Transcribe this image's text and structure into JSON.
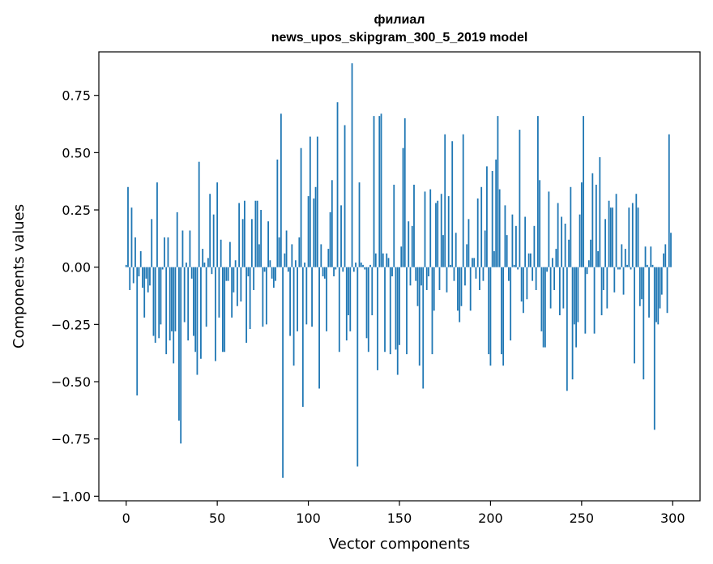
{
  "chart_data": {
    "type": "bar",
    "title": "филиал",
    "subtitle": "news_upos_skipgram_300_5_2019 model",
    "xlabel": "Vector components",
    "ylabel": "Components values",
    "xlim": [
      -15,
      315
    ],
    "ylim": [
      -1.02,
      0.94
    ],
    "x_ticks": [
      0,
      50,
      100,
      150,
      200,
      250,
      300
    ],
    "y_ticks": [
      -1.0,
      -0.75,
      -0.5,
      -0.25,
      0.0,
      0.25,
      0.5,
      0.75
    ],
    "y_tick_labels": [
      "−1.00",
      "−0.75",
      "−0.50",
      "−0.25",
      "0.00",
      "0.25",
      "0.50",
      "0.75"
    ],
    "bar_color": "#1f77b4",
    "grid": false,
    "x": [
      0,
      1,
      2,
      3,
      4,
      5,
      6,
      7,
      8,
      9,
      10,
      11,
      12,
      13,
      14,
      15,
      16,
      17,
      18,
      19,
      20,
      21,
      22,
      23,
      24,
      25,
      26,
      27,
      28,
      29,
      30,
      31,
      32,
      33,
      34,
      35,
      36,
      37,
      38,
      39,
      40,
      41,
      42,
      43,
      44,
      45,
      46,
      47,
      48,
      49,
      50,
      51,
      52,
      53,
      54,
      55,
      56,
      57,
      58,
      59,
      60,
      61,
      62,
      63,
      64,
      65,
      66,
      67,
      68,
      69,
      70,
      71,
      72,
      73,
      74,
      75,
      76,
      77,
      78,
      79,
      80,
      81,
      82,
      83,
      84,
      85,
      86,
      87,
      88,
      89,
      90,
      91,
      92,
      93,
      94,
      95,
      96,
      97,
      98,
      99,
      100,
      101,
      102,
      103,
      104,
      105,
      106,
      107,
      108,
      109,
      110,
      111,
      112,
      113,
      114,
      115,
      116,
      117,
      118,
      119,
      120,
      121,
      122,
      123,
      124,
      125,
      126,
      127,
      128,
      129,
      130,
      131,
      132,
      133,
      134,
      135,
      136,
      137,
      138,
      139,
      140,
      141,
      142,
      143,
      144,
      145,
      146,
      147,
      148,
      149,
      150,
      151,
      152,
      153,
      154,
      155,
      156,
      157,
      158,
      159,
      160,
      161,
      162,
      163,
      164,
      165,
      166,
      167,
      168,
      169,
      170,
      171,
      172,
      173,
      174,
      175,
      176,
      177,
      178,
      179,
      180,
      181,
      182,
      183,
      184,
      185,
      186,
      187,
      188,
      189,
      190,
      191,
      192,
      193,
      194,
      195,
      196,
      197,
      198,
      199,
      200,
      201,
      202,
      203,
      204,
      205,
      206,
      207,
      208,
      209,
      210,
      211,
      212,
      213,
      214,
      215,
      216,
      217,
      218,
      219,
      220,
      221,
      222,
      223,
      224,
      225,
      226,
      227,
      228,
      229,
      230,
      231,
      232,
      233,
      234,
      235,
      236,
      237,
      238,
      239,
      240,
      241,
      242,
      243,
      244,
      245,
      246,
      247,
      248,
      249,
      250,
      251,
      252,
      253,
      254,
      255,
      256,
      257,
      258,
      259,
      260,
      261,
      262,
      263,
      264,
      265,
      266,
      267,
      268,
      269,
      270,
      271,
      272,
      273,
      274,
      275,
      276,
      277,
      278,
      279,
      280,
      281,
      282,
      283,
      284,
      285,
      286,
      287,
      288,
      289,
      290,
      291,
      292,
      293,
      294,
      295,
      296,
      297,
      298,
      299
    ],
    "values": [
      0.01,
      0.35,
      -0.1,
      0.26,
      -0.07,
      0.13,
      -0.56,
      -0.04,
      0.07,
      -0.09,
      -0.22,
      -0.05,
      -0.11,
      -0.08,
      0.21,
      -0.3,
      -0.33,
      0.37,
      -0.31,
      -0.25,
      -0.01,
      0.13,
      -0.38,
      0.13,
      -0.32,
      -0.28,
      -0.42,
      -0.28,
      0.24,
      -0.67,
      -0.77,
      0.16,
      -0.24,
      0.02,
      -0.32,
      0.16,
      -0.05,
      -0.3,
      -0.37,
      -0.47,
      0.46,
      -0.4,
      0.08,
      0.02,
      -0.26,
      0.04,
      0.32,
      -0.03,
      0.23,
      -0.41,
      0.37,
      -0.22,
      0.12,
      -0.37,
      -0.37,
      -0.06,
      -0.06,
      0.11,
      -0.22,
      -0.11,
      0.03,
      -0.17,
      0.28,
      -0.15,
      0.21,
      0.29,
      -0.33,
      -0.04,
      -0.27,
      0.21,
      -0.1,
      0.29,
      0.29,
      0.1,
      0.25,
      -0.26,
      -0.02,
      -0.25,
      0.2,
      0.03,
      -0.05,
      -0.09,
      -0.06,
      0.47,
      0.13,
      0.67,
      -0.92,
      0.06,
      0.16,
      -0.02,
      -0.3,
      0.1,
      -0.43,
      0.03,
      -0.28,
      0.13,
      0.52,
      -0.61,
      0.02,
      -0.25,
      0.31,
      0.57,
      -0.26,
      0.3,
      0.35,
      0.57,
      -0.53,
      0.1,
      -0.04,
      -0.05,
      -0.28,
      0.08,
      0.24,
      0.38,
      -0.04,
      -0.01,
      0.72,
      -0.37,
      0.27,
      -0.02,
      0.62,
      -0.32,
      -0.21,
      -0.28,
      0.89,
      -0.02,
      0.02,
      -0.87,
      0.37,
      0.02,
      0.01,
      -0.01,
      -0.31,
      -0.37,
      0.01,
      -0.21,
      0.66,
      0.06,
      -0.45,
      0.66,
      0.67,
      0.06,
      -0.37,
      0.06,
      0.04,
      -0.38,
      -0.04,
      0.36,
      -0.36,
      -0.47,
      -0.34,
      0.09,
      0.52,
      0.65,
      -0.38,
      0.2,
      -0.08,
      0.18,
      0.36,
      -0.06,
      -0.17,
      -0.43,
      -0.08,
      -0.53,
      0.33,
      -0.1,
      -0.04,
      0.34,
      -0.38,
      -0.19,
      0.28,
      0.29,
      -0.1,
      0.32,
      0.14,
      0.58,
      -0.11,
      0.31,
      0.01,
      0.55,
      -0.06,
      0.15,
      -0.19,
      -0.24,
      -0.17,
      0.58,
      -0.08,
      0.1,
      0.21,
      -0.19,
      0.04,
      0.04,
      -0.05,
      0.3,
      -0.1,
      0.35,
      -0.06,
      0.16,
      0.44,
      -0.38,
      -0.43,
      0.42,
      0.07,
      0.47,
      0.66,
      0.34,
      -0.38,
      -0.43,
      0.27,
      0.14,
      -0.06,
      -0.32,
      0.23,
      0.01,
      0.18,
      -0.01,
      0.6,
      -0.15,
      -0.2,
      0.22,
      -0.14,
      0.06,
      0.06,
      -0.06,
      0.18,
      -0.1,
      0.66,
      0.38,
      -0.28,
      -0.35,
      -0.35,
      -0.02,
      0.33,
      -0.18,
      0.04,
      -0.1,
      0.08,
      0.28,
      -0.21,
      0.22,
      -0.18,
      0.19,
      -0.54,
      0.12,
      0.35,
      -0.49,
      -0.25,
      -0.35,
      -0.24,
      0.23,
      0.37,
      0.66,
      -0.29,
      -0.03,
      0.03,
      0.12,
      0.41,
      -0.29,
      0.36,
      0.07,
      0.48,
      -0.21,
      -0.1,
      0.21,
      -0.18,
      0.29,
      0.26,
      0.26,
      -0.11,
      0.32,
      -0.01,
      -0.01,
      0.1,
      -0.12,
      0.08,
      0.01,
      0.26,
      -0.01,
      0.28,
      -0.42,
      0.32,
      0.26,
      -0.17,
      -0.14,
      -0.49,
      0.09,
      0.01,
      -0.22,
      0.09,
      0.01,
      -0.71,
      -0.24,
      -0.25,
      -0.18,
      -0.12,
      0.06,
      0.1,
      -0.2,
      0.58,
      0.15
    ]
  }
}
